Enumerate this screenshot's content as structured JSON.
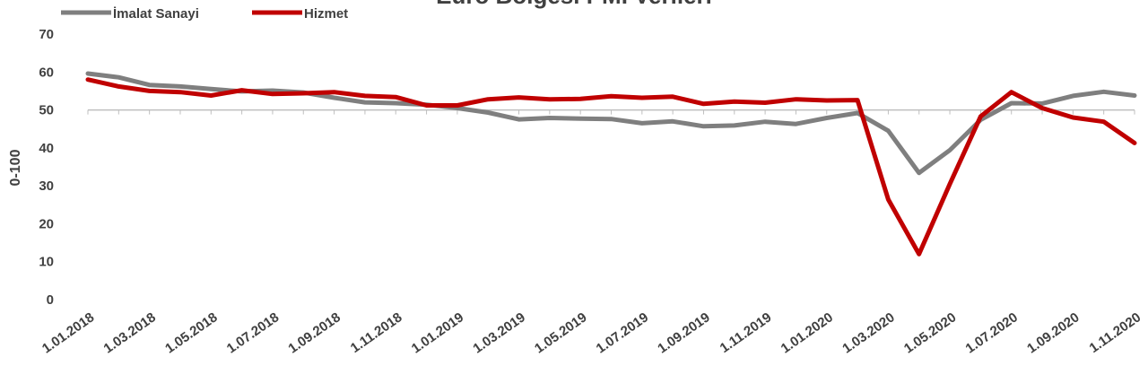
{
  "chart_data": {
    "type": "line",
    "title": "Euro Bölgesi PMI Verileri",
    "xlabel": "",
    "ylabel": "0-100",
    "ylim": [
      0,
      70
    ],
    "yticks": [
      0,
      10,
      20,
      30,
      40,
      50,
      60,
      70
    ],
    "grid": false,
    "legend_position": "top-left",
    "x": [
      "1.01.2018",
      "1.02.2018",
      "1.03.2018",
      "1.04.2018",
      "1.05.2018",
      "1.06.2018",
      "1.07.2018",
      "1.08.2018",
      "1.09.2018",
      "1.10.2018",
      "1.11.2018",
      "1.12.2018",
      "1.01.2019",
      "1.02.2019",
      "1.03.2019",
      "1.04.2019",
      "1.05.2019",
      "1.06.2019",
      "1.07.2019",
      "1.08.2019",
      "1.09.2019",
      "1.10.2019",
      "1.11.2019",
      "1.12.2019",
      "1.01.2020",
      "1.02.2020",
      "1.03.2020",
      "1.04.2020",
      "1.05.2020",
      "1.06.2020",
      "1.07.2020",
      "1.08.2020",
      "1.09.2020",
      "1.10.2020",
      "1.11.2020"
    ],
    "x_tick_labels": [
      "1.01.2018",
      "1.03.2018",
      "1.05.2018",
      "1.07.2018",
      "1.09.2018",
      "1.11.2018",
      "1.01.2019",
      "1.03.2019",
      "1.05.2019",
      "1.07.2019",
      "1.09.2019",
      "1.11.2019",
      "1.01.2020",
      "1.03.2020",
      "1.05.2020",
      "1.07.2020",
      "1.09.2020",
      "1.11.2020"
    ],
    "series": [
      {
        "name": "İmalat Sanayi",
        "color": "#7f7f7f",
        "values": [
          59.6,
          58.6,
          56.6,
          56.2,
          55.5,
          54.9,
          55.1,
          54.6,
          53.2,
          52.0,
          51.8,
          51.4,
          50.5,
          49.3,
          47.5,
          47.9,
          47.7,
          47.6,
          46.5,
          47.0,
          45.7,
          45.9,
          46.9,
          46.3,
          47.9,
          49.2,
          44.5,
          33.4,
          39.4,
          47.4,
          51.8,
          51.7,
          53.7,
          54.8,
          53.8
        ]
      },
      {
        "name": "Hizmet",
        "color": "#c00000",
        "values": [
          58.0,
          56.2,
          55.0,
          54.7,
          53.8,
          55.2,
          54.2,
          54.4,
          54.7,
          53.7,
          53.4,
          51.2,
          51.2,
          52.8,
          53.3,
          52.8,
          52.9,
          53.6,
          53.2,
          53.5,
          51.6,
          52.2,
          51.9,
          52.8,
          52.5,
          52.6,
          26.4,
          12.0,
          30.5,
          48.3,
          54.7,
          50.5,
          48.0,
          46.9,
          41.3
        ]
      }
    ]
  }
}
